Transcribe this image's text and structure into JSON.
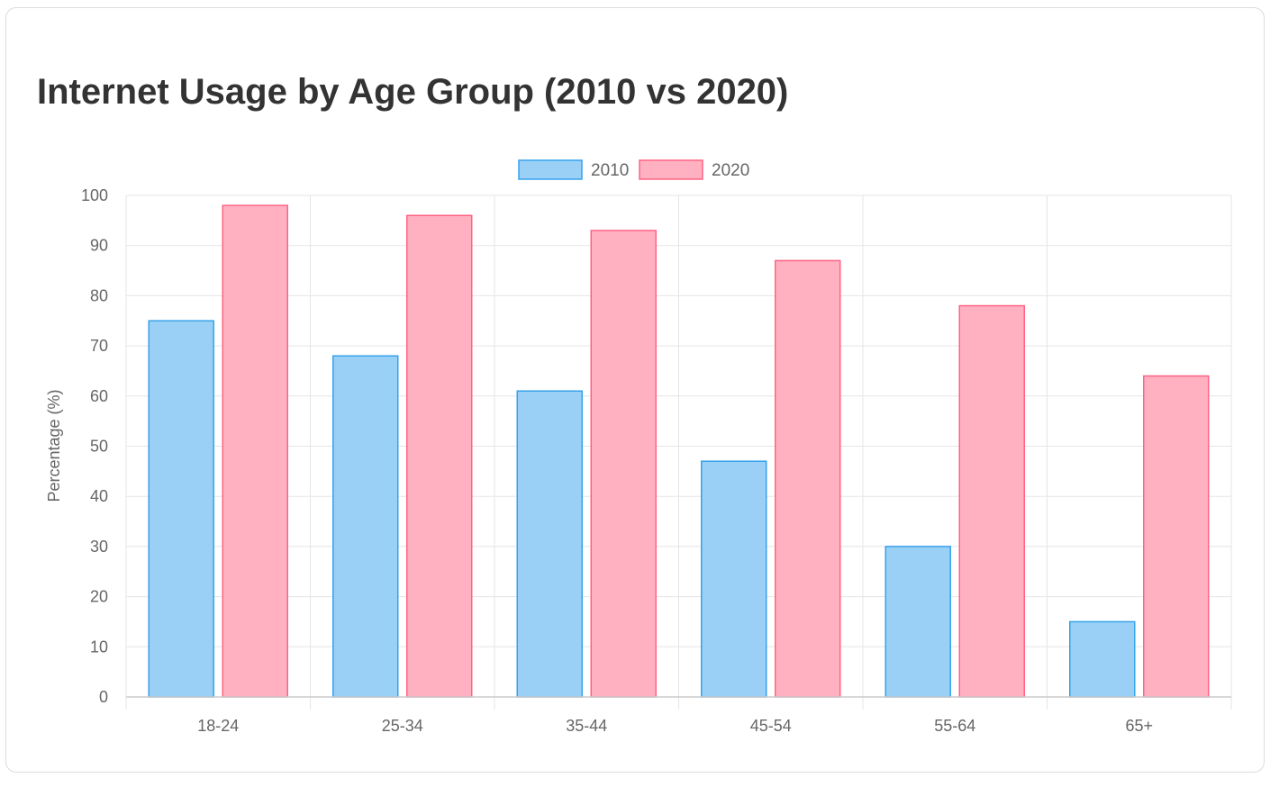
{
  "chart_data": {
    "type": "bar",
    "title": "Internet Usage by Age Group (2010 vs 2020)",
    "xlabel": "",
    "ylabel": "Percentage (%)",
    "ylim": [
      0,
      100
    ],
    "yticks": [
      0,
      10,
      20,
      30,
      40,
      50,
      60,
      70,
      80,
      90,
      100
    ],
    "categories": [
      "18-24",
      "25-34",
      "35-44",
      "45-54",
      "55-64",
      "65+"
    ],
    "series": [
      {
        "name": "2010",
        "values": [
          75,
          68,
          61,
          47,
          30,
          15
        ],
        "fill": "#9ad0f5",
        "stroke": "#36a2eb"
      },
      {
        "name": "2020",
        "values": [
          98,
          96,
          93,
          87,
          78,
          64
        ],
        "fill": "#ffb1c1",
        "stroke": "#ff6384"
      }
    ],
    "grid": true,
    "legend": "top-center"
  }
}
